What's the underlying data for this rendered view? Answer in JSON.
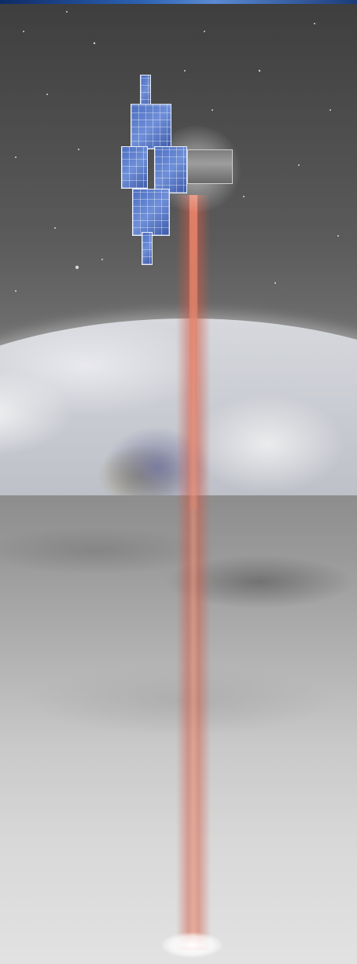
{
  "scene": {
    "subject": "satellite",
    "elements": [
      "satellite",
      "earth",
      "moon-surface",
      "laser-beam"
    ]
  },
  "colors": {
    "space": "#3e3e3e",
    "panel_blue": "#5a7ccc",
    "beam": "#e27f66",
    "moon": "#c9c9c9",
    "top_band": "#2d63b4"
  }
}
